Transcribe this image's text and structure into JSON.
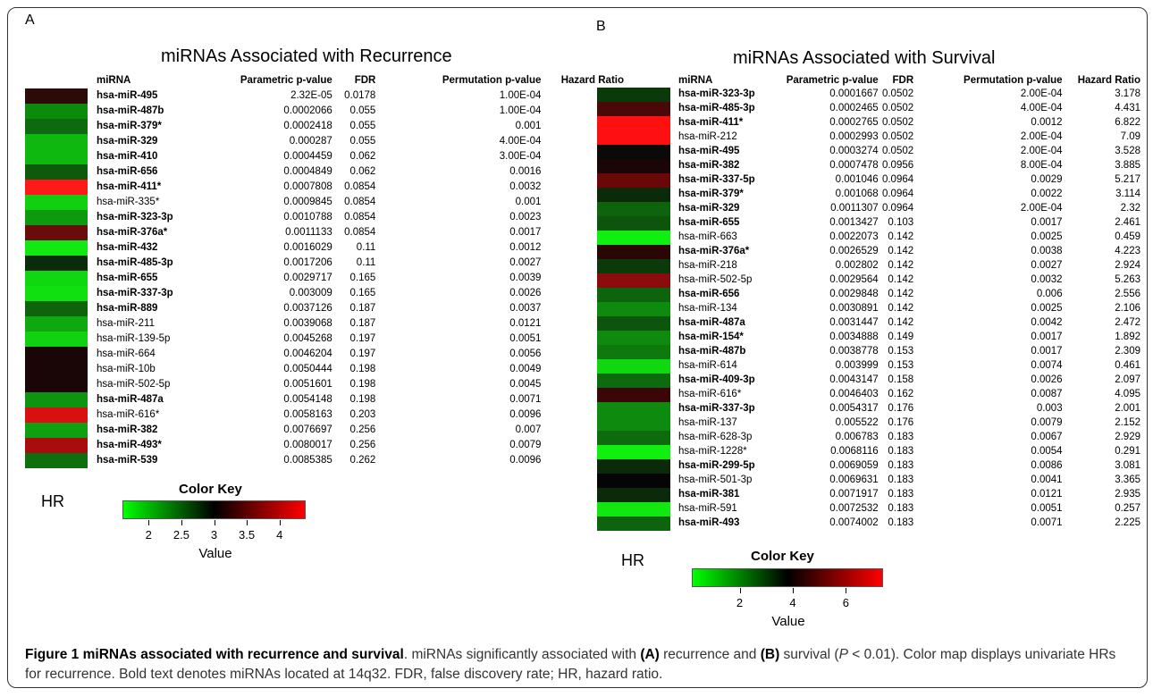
{
  "caption": {
    "label": "Figure 1",
    "title": "miRNAs associated with recurrence and survival",
    "t1": ". miRNAs significantly associated with ",
    "a": "(A)",
    "t2": " recurrence and ",
    "b": "(B)",
    "t3": " survival (",
    "p": "P",
    "t4": " < 0.01). Color map displays univariate HRs for recurrence. Bold text denotes miRNAs located at 14q32. FDR, false discovery rate; HR, hazard ratio."
  },
  "panels": [
    {
      "letter": "A",
      "title": "miRNAs Associated with Recurrence",
      "headers": [
        "miRNA",
        "Parametric p-value",
        "FDR",
        "Permutation p-value",
        "Hazard Ratio"
      ],
      "colors": [
        "#2b0a08",
        "#0c8a0c",
        "#0f6a0f",
        "#0fb80f",
        "#0fb80f",
        "#0d5a0d",
        "#ff1a1a",
        "#10d010",
        "#0e9a0e",
        "#6a0c0a",
        "#10ea10",
        "#0a2c0a",
        "#10d810",
        "#10e010",
        "#0d640d",
        "#0fa80f",
        "#10d210",
        "#1a0606",
        "#1a0606",
        "#1a0606",
        "#0e940e",
        "#d81010",
        "#0fa00f",
        "#a80c0c",
        "#0d700d"
      ],
      "rows": [
        [
          "hsa-miR-495",
          "2.32E-05",
          "0.0178",
          "1.00E-04",
          "3.336",
          true
        ],
        [
          "hsa-miR-487b",
          "0.0002066",
          "0.055",
          "1.00E-04",
          "2.316",
          true
        ],
        [
          "hsa-miR-379*",
          "0.0002418",
          "0.055",
          "0.001",
          "2.6",
          true
        ],
        [
          "hsa-miR-329",
          "0.000287",
          "0.055",
          "4.00E-04",
          "2.151",
          true
        ],
        [
          "hsa-miR-410",
          "0.0004459",
          "0.062",
          "3.00E-04",
          "2.161",
          true
        ],
        [
          "hsa-miR-656",
          "0.0004849",
          "0.062",
          "0.0016",
          "2.626",
          true
        ],
        [
          "hsa-miR-411*",
          "0.0007808",
          "0.0854",
          "0.0032",
          "4.278",
          true
        ],
        [
          "hsa-miR-335*",
          "0.0009845",
          "0.0854",
          "0.001",
          "2.045",
          false
        ],
        [
          "hsa-miR-323-3p",
          "0.0010788",
          "0.0854",
          "0.0023",
          "2.265",
          true
        ],
        [
          "hsa-miR-376a*",
          "0.0011133",
          "0.0854",
          "0.0017",
          "3.469",
          true
        ],
        [
          "hsa-miR-432",
          "0.0016029",
          "0.11",
          "0.0012",
          "1.776",
          true
        ],
        [
          "hsa-miR-485-3p",
          "0.0017206",
          "0.11",
          "0.0027",
          "2.774",
          true
        ],
        [
          "hsa-miR-655",
          "0.0029717",
          "0.165",
          "0.0039",
          "1.916",
          true
        ],
        [
          "hsa-miR-337-3p",
          "0.003009",
          "0.165",
          "0.0026",
          "1.832",
          true
        ],
        [
          "hsa-miR-889",
          "0.0037126",
          "0.187",
          "0.0037",
          "2.532",
          true
        ],
        [
          "hsa-miR-211",
          "0.0039068",
          "0.187",
          "0.0121",
          "2.133",
          false
        ],
        [
          "hsa-miR-139-5p",
          "0.0045268",
          "0.197",
          "0.0051",
          "1.936",
          false
        ],
        [
          "hsa-miR-664",
          "0.0046204",
          "0.197",
          "0.0056",
          "3.196",
          false
        ],
        [
          "hsa-miR-10b",
          "0.0050444",
          "0.198",
          "0.0049",
          "3.153",
          false
        ],
        [
          "hsa-miR-502-5p",
          "0.0051601",
          "0.198",
          "0.0045",
          "3.178",
          false
        ],
        [
          "hsa-miR-487a",
          "0.0054148",
          "0.198",
          "0.0071",
          "2.021",
          true
        ],
        [
          "hsa-miR-616*",
          "0.0058163",
          "0.203",
          "0.0096",
          "4.065",
          false
        ],
        [
          "hsa-miR-382",
          "0.0076697",
          "0.256",
          "0.007",
          "2.306",
          true
        ],
        [
          "hsa-miR-493*",
          "0.0080017",
          "0.256",
          "0.0079",
          "3.761",
          true
        ],
        [
          "hsa-miR-539",
          "0.0085385",
          "0.262",
          "0.0096",
          "2.501",
          true
        ]
      ],
      "hr_label": "HR",
      "color_key": {
        "title": "Color Key",
        "axis_label": "Value",
        "ticks": [
          "2",
          "2.5",
          "3",
          "3.5",
          "4"
        ],
        "range": [
          1.6,
          4.4
        ],
        "tick_values": [
          2,
          2.5,
          3,
          3.5,
          4
        ],
        "gradient": [
          "#00ff00",
          "#000000",
          "#ff0000"
        ]
      }
    },
    {
      "letter": "B",
      "title": "miRNAs Associated with Survival",
      "headers": [
        "miRNA",
        "Parametric p-value",
        "FDR",
        "Permutation p-value",
        "Hazard Ratio"
      ],
      "colors": [
        "#0a3a0a",
        "#4a0808",
        "#ff1010",
        "#ff1010",
        "#0a0a0a",
        "#1a0606",
        "#6a0808",
        "#0a2a0a",
        "#0d640d",
        "#0d540d",
        "#10f010",
        "#2a0606",
        "#0a3a0a",
        "#8a0c0c",
        "#0d640d",
        "#0e8a0e",
        "#0d540d",
        "#0e8a0e",
        "#0e7a0e",
        "#10d810",
        "#0d6a0d",
        "#3a0606",
        "#0e8a0e",
        "#0e8a0e",
        "#0d6a0d",
        "#10f010",
        "#0a2a0a",
        "#050505",
        "#0a2a0a",
        "#10e810",
        "#0d640d"
      ],
      "rows": [
        [
          "hsa-miR-323-3p",
          "0.0001667",
          "0.0502",
          "2.00E-04",
          "3.178",
          true
        ],
        [
          "hsa-miR-485-3p",
          "0.0002465",
          "0.0502",
          "4.00E-04",
          "4.431",
          true
        ],
        [
          "hsa-miR-411*",
          "0.0002765",
          "0.0502",
          "0.0012",
          "6.822",
          true
        ],
        [
          "hsa-miR-212",
          "0.0002993",
          "0.0502",
          "2.00E-04",
          "7.09",
          false
        ],
        [
          "hsa-miR-495",
          "0.0003274",
          "0.0502",
          "2.00E-04",
          "3.528",
          true
        ],
        [
          "hsa-miR-382",
          "0.0007478",
          "0.0956",
          "8.00E-04",
          "3.885",
          true
        ],
        [
          "hsa-miR-337-5p",
          "0.001046",
          "0.0964",
          "0.0029",
          "5.217",
          true
        ],
        [
          "hsa-miR-379*",
          "0.001068",
          "0.0964",
          "0.0022",
          "3.114",
          true
        ],
        [
          "hsa-miR-329",
          "0.0011307",
          "0.0964",
          "2.00E-04",
          "2.32",
          true
        ],
        [
          "hsa-miR-655",
          "0.0013427",
          "0.103",
          "0.0017",
          "2.461",
          true
        ],
        [
          "hsa-miR-663",
          "0.0022073",
          "0.142",
          "0.0025",
          "0.459",
          false
        ],
        [
          "hsa-miR-376a*",
          "0.0026529",
          "0.142",
          "0.0038",
          "4.223",
          true
        ],
        [
          "hsa-miR-218",
          "0.002802",
          "0.142",
          "0.0027",
          "2.924",
          false
        ],
        [
          "hsa-miR-502-5p",
          "0.0029564",
          "0.142",
          "0.0032",
          "5.263",
          false
        ],
        [
          "hsa-miR-656",
          "0.0029848",
          "0.142",
          "0.006",
          "2.556",
          true
        ],
        [
          "hsa-miR-134",
          "0.0030891",
          "0.142",
          "0.0025",
          "2.106",
          false
        ],
        [
          "hsa-miR-487a",
          "0.0031447",
          "0.142",
          "0.0042",
          "2.472",
          true
        ],
        [
          "hsa-miR-154*",
          "0.0034888",
          "0.149",
          "0.0017",
          "1.892",
          true
        ],
        [
          "hsa-miR-487b",
          "0.0038778",
          "0.153",
          "0.0017",
          "2.309",
          true
        ],
        [
          "hsa-miR-614",
          "0.003999",
          "0.153",
          "0.0074",
          "0.461",
          false
        ],
        [
          "hsa-miR-409-3p",
          "0.0043147",
          "0.158",
          "0.0026",
          "2.097",
          true
        ],
        [
          "hsa-miR-616*",
          "0.0046403",
          "0.162",
          "0.0087",
          "4.095",
          false
        ],
        [
          "hsa-miR-337-3p",
          "0.0054317",
          "0.176",
          "0.003",
          "2.001",
          true
        ],
        [
          "hsa-miR-137",
          "0.005522",
          "0.176",
          "0.0079",
          "2.152",
          false
        ],
        [
          "hsa-miR-628-3p",
          "0.006783",
          "0.183",
          "0.0067",
          "2.929",
          false
        ],
        [
          "hsa-miR-1228*",
          "0.0068116",
          "0.183",
          "0.0054",
          "0.291",
          false
        ],
        [
          "hsa-miR-299-5p",
          "0.0069059",
          "0.183",
          "0.0086",
          "3.081",
          true
        ],
        [
          "hsa-miR-501-3p",
          "0.0069631",
          "0.183",
          "0.0041",
          "3.365",
          false
        ],
        [
          "hsa-miR-381",
          "0.0071917",
          "0.183",
          "0.0121",
          "2.935",
          true
        ],
        [
          "hsa-miR-591",
          "0.0072532",
          "0.183",
          "0.0051",
          "0.257",
          false
        ],
        [
          "hsa-miR-493",
          "0.0074002",
          "0.183",
          "0.0071",
          "2.225",
          true
        ]
      ],
      "hr_label": "HR",
      "color_key": {
        "title": "Color Key",
        "axis_label": "Value",
        "ticks": [
          "2",
          "4",
          "6"
        ],
        "range": [
          0.2,
          7.4
        ],
        "tick_values": [
          2,
          4,
          6
        ],
        "gradient": [
          "#00ff00",
          "#000000",
          "#ff0000"
        ]
      }
    }
  ]
}
